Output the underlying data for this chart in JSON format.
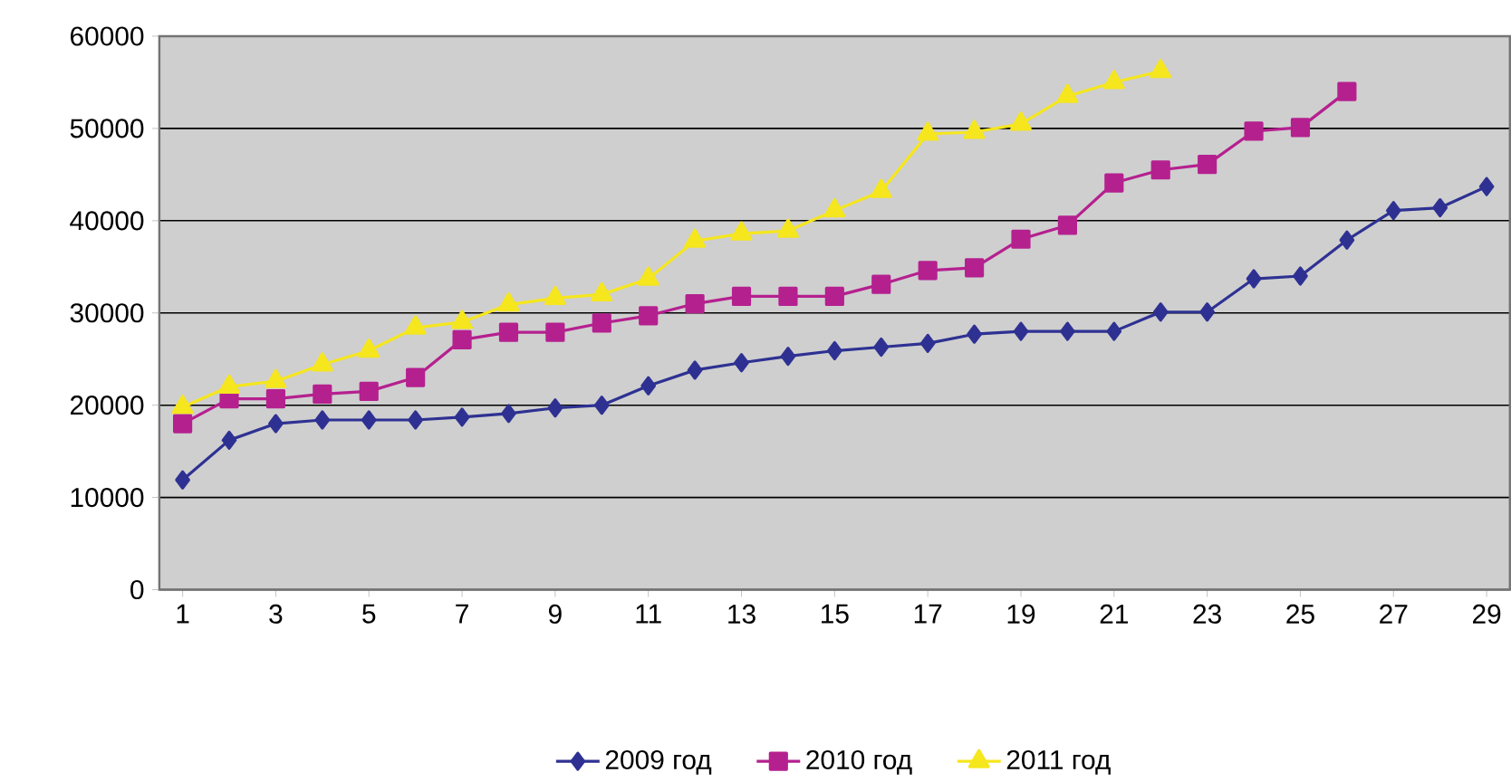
{
  "chart_data": {
    "type": "line",
    "x": [
      1,
      2,
      3,
      4,
      5,
      6,
      7,
      8,
      9,
      10,
      11,
      12,
      13,
      14,
      15,
      16,
      17,
      18,
      19,
      20,
      21,
      22,
      23,
      24,
      25,
      26,
      27,
      28,
      29
    ],
    "series": [
      {
        "name": "2009 год",
        "color": "#2e3192",
        "marker": "diamond",
        "values": [
          11900,
          16200,
          18000,
          18400,
          18400,
          18400,
          18700,
          19100,
          19700,
          20000,
          22100,
          23800,
          24600,
          25300,
          25900,
          26300,
          26700,
          27700,
          28000,
          28000,
          28000,
          30100,
          30100,
          33700,
          34000,
          37900,
          41100,
          41400,
          43700
        ]
      },
      {
        "name": "2010 год",
        "color": "#b5208f",
        "marker": "square",
        "values": [
          18000,
          20700,
          20700,
          21200,
          21500,
          23000,
          27100,
          27900,
          27900,
          28900,
          29700,
          31000,
          31800,
          31800,
          31800,
          33100,
          34600,
          34900,
          38000,
          39500,
          44100,
          45500,
          46100,
          49700,
          50100,
          54000,
          null,
          null,
          null
        ]
      },
      {
        "name": "2011 год",
        "color": "#f5e61e",
        "marker": "triangle",
        "values": [
          19800,
          22000,
          22600,
          24400,
          25900,
          28400,
          29000,
          30900,
          31600,
          32000,
          33700,
          37800,
          38600,
          38900,
          41100,
          43200,
          49400,
          49600,
          50500,
          53500,
          55000,
          56200,
          null,
          null,
          null,
          null,
          null,
          null,
          null
        ]
      }
    ],
    "xlim": [
      0.5,
      29.5
    ],
    "xticks": [
      1,
      3,
      5,
      7,
      9,
      11,
      13,
      15,
      17,
      19,
      21,
      23,
      25,
      27,
      29
    ],
    "ylim": [
      0,
      60000
    ],
    "yticks": [
      0,
      10000,
      20000,
      30000,
      40000,
      50000,
      60000
    ],
    "grid": "y",
    "legend": "bottom",
    "line_style": "solid"
  }
}
